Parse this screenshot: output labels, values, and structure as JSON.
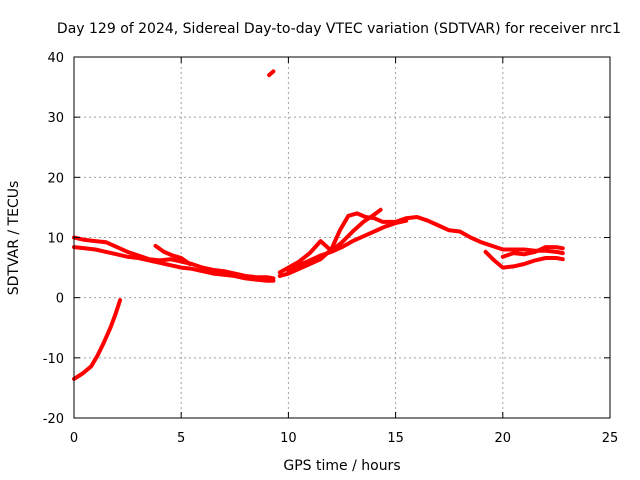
{
  "chart_data": {
    "type": "line",
    "title": "Day 129 of 2024, Sidereal Day-to-day VTEC variation (SDTVAR) for receiver nrc1",
    "xlabel": "GPS time / hours",
    "ylabel": "SDTVAR / TECUs",
    "xlim": [
      0,
      25
    ],
    "ylim": [
      -20,
      40
    ],
    "xticks": [
      0,
      5,
      10,
      15,
      20,
      25
    ],
    "yticks": [
      -20,
      -10,
      0,
      10,
      20,
      30,
      40
    ],
    "xtick_labels": [
      "0",
      "5",
      "10",
      "15",
      "20",
      "25"
    ],
    "ytick_labels": [
      "-20",
      "-10",
      "0",
      "10",
      "20",
      "30",
      "40"
    ],
    "grid": true,
    "series_color": "#ff0000",
    "series": [
      {
        "name": "track-main-a",
        "points": [
          [
            0,
            10
          ],
          [
            0.5,
            9.6
          ],
          [
            1,
            9.4
          ],
          [
            1.5,
            9.2
          ],
          [
            2,
            8.4
          ],
          [
            2.5,
            7.6
          ],
          [
            3,
            7
          ],
          [
            3.5,
            6.4
          ],
          [
            4,
            6.2
          ],
          [
            4.5,
            6.4
          ],
          [
            5,
            6
          ],
          [
            5.5,
            5.6
          ],
          [
            6,
            5
          ],
          [
            6.5,
            4.6
          ],
          [
            7,
            4.4
          ],
          [
            7.5,
            4
          ],
          [
            8,
            3.6
          ],
          [
            8.5,
            3.4
          ],
          [
            9,
            3.4
          ],
          [
            9.3,
            3.2
          ]
        ]
      },
      {
        "name": "track-main-b",
        "points": [
          [
            0,
            8.4
          ],
          [
            0.5,
            8.2
          ],
          [
            1,
            8
          ],
          [
            1.5,
            7.6
          ],
          [
            2,
            7.2
          ],
          [
            2.5,
            6.8
          ],
          [
            3,
            6.6
          ],
          [
            3.5,
            6.2
          ],
          [
            4,
            5.8
          ],
          [
            4.5,
            5.4
          ],
          [
            5,
            5
          ],
          [
            5.5,
            4.8
          ],
          [
            6,
            4.4
          ],
          [
            6.5,
            4
          ],
          [
            7,
            3.8
          ],
          [
            7.5,
            3.6
          ],
          [
            8,
            3.2
          ],
          [
            8.5,
            3
          ],
          [
            9,
            2.8
          ],
          [
            9.3,
            2.8
          ]
        ]
      },
      {
        "name": "track-hump",
        "points": [
          [
            3.8,
            8.6
          ],
          [
            4.2,
            7.6
          ],
          [
            4.6,
            7
          ],
          [
            5,
            6.6
          ],
          [
            5.4,
            5.6
          ]
        ]
      },
      {
        "name": "track-negative",
        "points": [
          [
            0,
            -13.5
          ],
          [
            0.4,
            -12.6
          ],
          [
            0.8,
            -11.4
          ],
          [
            1.1,
            -9.6
          ],
          [
            1.4,
            -7.4
          ],
          [
            1.7,
            -5
          ],
          [
            1.95,
            -2.6
          ],
          [
            2.15,
            -0.4
          ]
        ]
      },
      {
        "name": "track-outlier",
        "points": [
          [
            9.1,
            37
          ],
          [
            9.3,
            37.6
          ]
        ]
      },
      {
        "name": "track-rise-a",
        "points": [
          [
            9.6,
            3.6
          ],
          [
            10,
            4
          ],
          [
            10.5,
            4.8
          ],
          [
            11,
            5.6
          ],
          [
            11.5,
            6.4
          ],
          [
            12,
            8
          ],
          [
            12.4,
            11.2
          ],
          [
            12.8,
            13.6
          ],
          [
            13.2,
            14
          ],
          [
            13.6,
            13.4
          ],
          [
            14,
            13.2
          ],
          [
            14.4,
            12.6
          ],
          [
            15,
            12.6
          ],
          [
            15.5,
            13.2
          ],
          [
            16,
            13.4
          ],
          [
            16.5,
            12.8
          ],
          [
            17,
            12
          ],
          [
            17.5,
            11.2
          ],
          [
            18,
            11
          ],
          [
            18.5,
            10
          ],
          [
            19,
            9.2
          ],
          [
            19.5,
            8.6
          ],
          [
            20,
            8
          ],
          [
            20.5,
            8
          ],
          [
            21,
            8
          ],
          [
            21.5,
            7.8
          ],
          [
            22,
            7.8
          ],
          [
            22.5,
            7.6
          ],
          [
            22.8,
            7.4
          ]
        ]
      },
      {
        "name": "track-rise-b",
        "points": [
          [
            9.6,
            4.2
          ],
          [
            10,
            5
          ],
          [
            10.5,
            6
          ],
          [
            11,
            7.4
          ],
          [
            11.5,
            9.4
          ],
          [
            12,
            7.8
          ],
          [
            12.5,
            9.2
          ],
          [
            13,
            11
          ],
          [
            13.5,
            12.6
          ],
          [
            14,
            13.8
          ],
          [
            14.3,
            14.6
          ]
        ]
      },
      {
        "name": "track-rise-c",
        "points": [
          [
            10,
            4.4
          ],
          [
            10.5,
            5.4
          ],
          [
            11,
            6.2
          ],
          [
            11.5,
            7
          ],
          [
            12,
            7.6
          ],
          [
            12.5,
            8.4
          ],
          [
            13,
            9.4
          ],
          [
            13.5,
            10.2
          ],
          [
            14,
            11
          ],
          [
            14.5,
            11.8
          ],
          [
            15,
            12.4
          ],
          [
            15.5,
            12.8
          ]
        ]
      },
      {
        "name": "track-late-a",
        "points": [
          [
            19.2,
            7.6
          ],
          [
            19.6,
            6.2
          ],
          [
            20,
            5
          ],
          [
            20.5,
            5.2
          ],
          [
            21,
            5.6
          ],
          [
            21.5,
            6.2
          ],
          [
            22,
            6.6
          ],
          [
            22.5,
            6.6
          ],
          [
            22.8,
            6.4
          ]
        ]
      },
      {
        "name": "track-late-b",
        "points": [
          [
            20,
            6.8
          ],
          [
            20.5,
            7.4
          ],
          [
            21,
            7.2
          ],
          [
            21.5,
            7.6
          ],
          [
            22,
            8.4
          ],
          [
            22.5,
            8.4
          ],
          [
            22.8,
            8.2
          ]
        ]
      }
    ]
  }
}
